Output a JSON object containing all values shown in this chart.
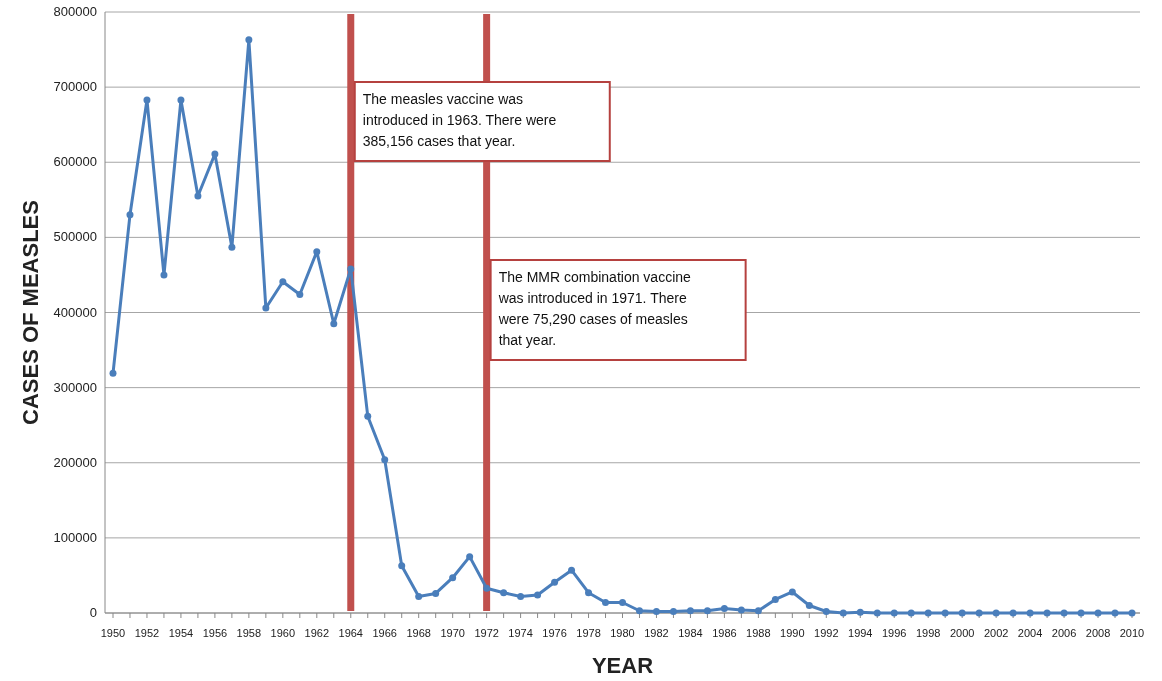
{
  "chart_data": {
    "type": "line",
    "xlabel": "YEAR",
    "ylabel": "CASES OF MEASLES",
    "categories": [
      "1950",
      null,
      "1952",
      null,
      "1954",
      null,
      "1956",
      null,
      "1958",
      null,
      "1960",
      null,
      "1962",
      null,
      "1964",
      null,
      "1966",
      null,
      "1968",
      null,
      "1970",
      null,
      "1972",
      null,
      "1974",
      null,
      "1976",
      null,
      "1978",
      null,
      "1980",
      null,
      "1982",
      null,
      "1984",
      null,
      "1986",
      null,
      "1988",
      null,
      "1990",
      null,
      "1992",
      null,
      "1994",
      null,
      "1996",
      null,
      "1998",
      null,
      "2000",
      null,
      "2002",
      null,
      "2004",
      null,
      "2006",
      null,
      "2008",
      null,
      "2010"
    ],
    "series": [
      {
        "color": "#4a7ebb",
        "values": [
          319000,
          530000,
          683000,
          450000,
          683000,
          555000,
          611000,
          487000,
          763000,
          406000,
          441000,
          424000,
          481000,
          385000,
          458000,
          262000,
          204000,
          63000,
          22000,
          26000,
          47000,
          75000,
          33000,
          27000,
          22000,
          24000,
          41000,
          57000,
          27000,
          14000,
          14000,
          3000,
          2000,
          2000,
          3000,
          3000,
          6000,
          4000,
          3000,
          18000,
          28000,
          10000,
          2000,
          0,
          1000,
          0,
          0,
          0,
          0,
          0,
          0,
          0,
          0,
          0,
          0,
          0,
          0,
          0,
          0,
          0,
          0
        ]
      }
    ],
    "ylim": [
      0,
      800000
    ],
    "yticks": [
      0,
      100000,
      200000,
      300000,
      400000,
      500000,
      600000,
      700000,
      800000
    ],
    "grid": "y",
    "marker": "circle",
    "line_style": "solid",
    "ref_lines": [
      {
        "axis": "x",
        "value": "1964",
        "color": "#c0504d"
      },
      {
        "axis": "x",
        "value": "1972",
        "color": "#c0504d"
      }
    ],
    "annotations": [
      "The measles vaccine was introduced in 1963. There were 385,156 cases that year.",
      "The MMR combination vaccine was introduced in 1971. There were 75,290 cases of measles that year."
    ]
  }
}
